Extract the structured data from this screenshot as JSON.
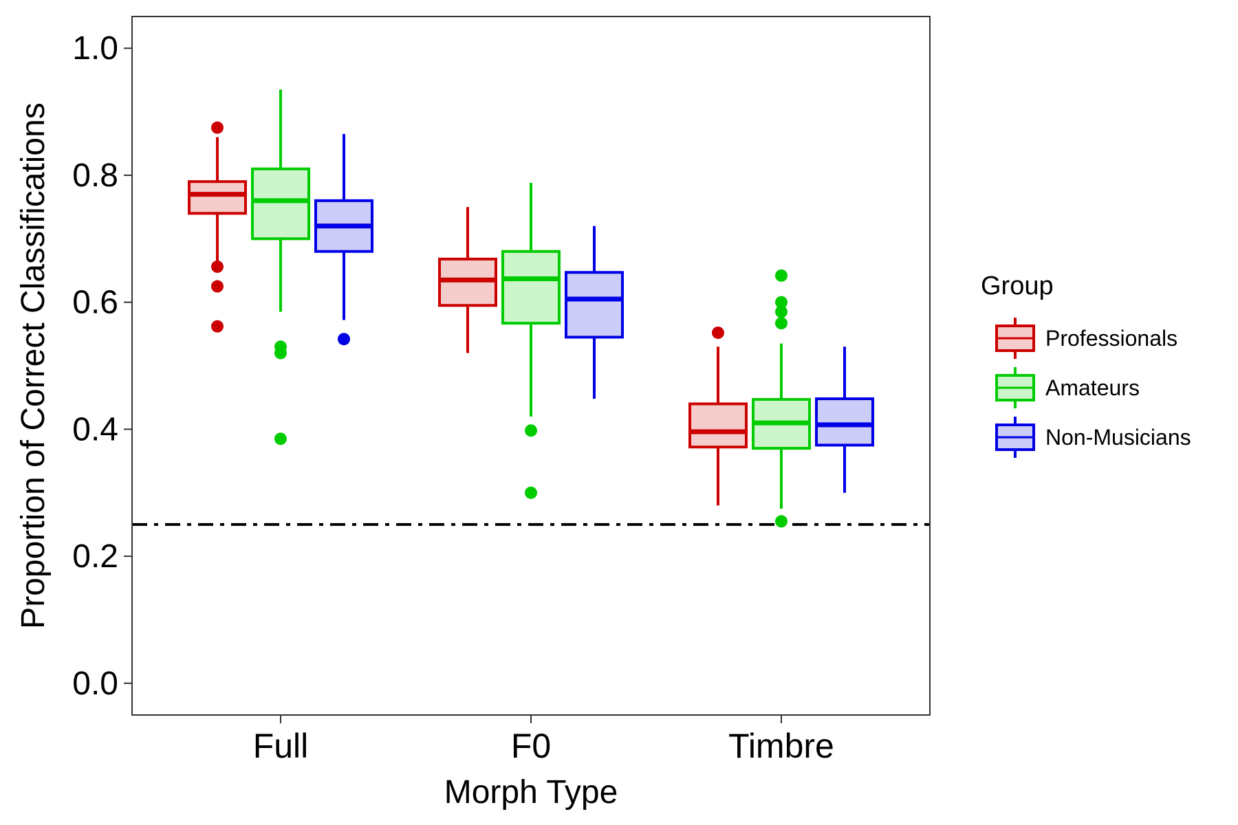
{
  "chart_data": {
    "type": "boxplot",
    "xlabel": "Morph Type",
    "ylabel": "Proportion of Correct Classifications",
    "categories": [
      "Full",
      "F0",
      "Timbre"
    ],
    "ylim": [
      -0.05,
      1.05
    ],
    "yticks": [
      "0.0",
      "0.2",
      "0.4",
      "0.6",
      "0.8",
      "1.0"
    ],
    "grid": false,
    "reference_line": {
      "y": 0.25,
      "style": "dash-dot"
    },
    "legend": {
      "title": "Group",
      "placement": "right"
    },
    "series": [
      {
        "name": "Professionals",
        "color": "#CC0000",
        "fill": "#F4CCCC",
        "boxes": [
          {
            "min": 0.66,
            "q1": 0.74,
            "median": 0.77,
            "q3": 0.79,
            "max": 0.86,
            "outliers": [
              0.875,
              0.656,
              0.625,
              0.562
            ]
          },
          {
            "min": 0.52,
            "q1": 0.595,
            "median": 0.635,
            "q3": 0.668,
            "max": 0.75,
            "outliers": []
          },
          {
            "min": 0.28,
            "q1": 0.372,
            "median": 0.396,
            "q3": 0.44,
            "max": 0.53,
            "outliers": [
              0.552
            ]
          }
        ]
      },
      {
        "name": "Amateurs",
        "color": "#00CC00",
        "fill": "#CCF5CC",
        "boxes": [
          {
            "min": 0.585,
            "q1": 0.7,
            "median": 0.76,
            "q3": 0.81,
            "max": 0.935,
            "outliers": [
              0.53,
              0.52,
              0.385
            ]
          },
          {
            "min": 0.42,
            "q1": 0.567,
            "median": 0.637,
            "q3": 0.68,
            "max": 0.788,
            "outliers": [
              0.398,
              0.3
            ]
          },
          {
            "min": 0.275,
            "q1": 0.37,
            "median": 0.41,
            "q3": 0.447,
            "max": 0.535,
            "outliers": [
              0.642,
              0.6,
              0.585,
              0.567,
              0.255
            ]
          }
        ]
      },
      {
        "name": "Non-Musicians",
        "color": "#0000E6",
        "fill": "#CCCCF9",
        "boxes": [
          {
            "min": 0.572,
            "q1": 0.68,
            "median": 0.72,
            "q3": 0.76,
            "max": 0.865,
            "outliers": [
              0.542
            ]
          },
          {
            "min": 0.448,
            "q1": 0.545,
            "median": 0.605,
            "q3": 0.647,
            "max": 0.72,
            "outliers": []
          },
          {
            "min": 0.3,
            "q1": 0.375,
            "median": 0.407,
            "q3": 0.448,
            "max": 0.53,
            "outliers": []
          }
        ]
      }
    ]
  }
}
